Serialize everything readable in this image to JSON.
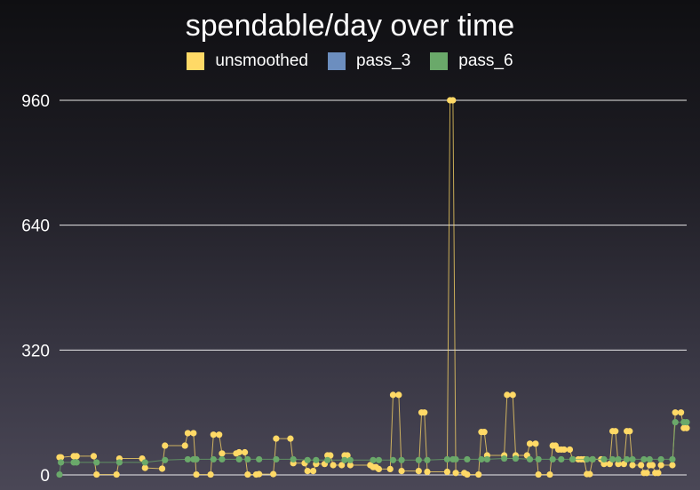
{
  "chart_data": {
    "type": "line",
    "title": "spendable/day over time",
    "xlabel": "",
    "ylabel": "",
    "ylim": [
      0,
      960
    ],
    "yticks": [
      0,
      320,
      640,
      960
    ],
    "grid": true,
    "legend_position": "top-center",
    "series": [
      {
        "name": "unsmoothed",
        "color": "#ffd966",
        "points": [
          [
            0,
            45
          ],
          [
            0.5,
            45
          ],
          [
            5,
            48
          ],
          [
            6,
            48
          ],
          [
            12,
            48
          ],
          [
            13,
            1
          ],
          [
            20,
            1
          ],
          [
            21,
            42
          ],
          [
            29,
            42
          ],
          [
            30,
            18
          ],
          [
            36,
            16
          ],
          [
            37,
            75
          ],
          [
            44,
            75
          ],
          [
            45,
            107
          ],
          [
            47,
            107
          ],
          [
            48,
            1
          ],
          [
            53,
            1
          ],
          [
            54,
            103
          ],
          [
            56,
            103
          ],
          [
            57,
            55
          ],
          [
            62,
            55
          ],
          [
            63,
            58
          ],
          [
            65,
            58
          ],
          [
            66,
            1
          ],
          [
            69,
            1
          ],
          [
            70,
            2
          ],
          [
            75,
            2
          ],
          [
            76,
            93
          ],
          [
            81,
            93
          ],
          [
            82,
            30
          ],
          [
            86,
            30
          ],
          [
            87,
            10
          ],
          [
            89,
            10
          ],
          [
            90,
            28
          ],
          [
            93,
            28
          ],
          [
            94,
            50
          ],
          [
            95,
            50
          ],
          [
            96,
            25
          ],
          [
            99,
            25
          ],
          [
            100,
            50
          ],
          [
            101,
            50
          ],
          [
            102,
            25
          ],
          [
            109,
            25
          ],
          [
            110,
            20
          ],
          [
            111,
            20
          ],
          [
            112,
            15
          ],
          [
            116,
            15
          ],
          [
            117,
            205
          ],
          [
            119,
            205
          ],
          [
            120,
            10
          ],
          [
            126,
            10
          ],
          [
            127,
            160
          ],
          [
            128,
            160
          ],
          [
            129,
            8
          ],
          [
            136,
            8
          ],
          [
            137,
            960
          ],
          [
            138,
            960
          ],
          [
            139,
            5
          ],
          [
            142,
            5
          ],
          [
            143,
            1
          ],
          [
            147,
            1
          ],
          [
            148,
            110
          ],
          [
            149,
            110
          ],
          [
            150,
            50
          ],
          [
            156,
            50
          ],
          [
            157,
            205
          ],
          [
            159,
            205
          ],
          [
            160,
            50
          ],
          [
            164,
            50
          ],
          [
            165,
            80
          ],
          [
            167,
            80
          ],
          [
            168,
            1
          ],
          [
            172,
            1
          ],
          [
            173,
            75
          ],
          [
            174,
            75
          ],
          [
            175,
            65
          ],
          [
            176,
            65
          ],
          [
            177,
            65
          ],
          [
            179,
            65
          ],
          [
            180,
            40
          ],
          [
            182,
            40
          ],
          [
            183,
            40
          ],
          [
            184,
            40
          ],
          [
            185,
            2
          ],
          [
            186,
            2
          ],
          [
            187,
            40
          ],
          [
            190,
            40
          ],
          [
            191,
            28
          ],
          [
            193,
            28
          ],
          [
            194,
            112
          ],
          [
            195,
            112
          ],
          [
            196,
            28
          ],
          [
            198,
            28
          ],
          [
            199,
            112
          ],
          [
            200,
            112
          ],
          [
            201,
            25
          ],
          [
            204,
            25
          ],
          [
            205,
            5
          ],
          [
            206,
            5
          ],
          [
            207,
            25
          ],
          [
            208,
            25
          ],
          [
            209,
            5
          ],
          [
            210,
            5
          ],
          [
            211,
            25
          ],
          [
            215,
            25
          ],
          [
            216,
            160
          ],
          [
            218,
            160
          ],
          [
            219,
            120
          ],
          [
            220,
            120
          ]
        ]
      },
      {
        "name": "pass_3",
        "color": "#6c8ebf",
        "points": []
      },
      {
        "name": "pass_6",
        "color": "#6aa96a",
        "points": [
          [
            0,
            1
          ],
          [
            0.5,
            32
          ],
          [
            5,
            32
          ],
          [
            6,
            32
          ],
          [
            13,
            32
          ],
          [
            21,
            32
          ],
          [
            30,
            32
          ],
          [
            37,
            38
          ],
          [
            45,
            40
          ],
          [
            47,
            40
          ],
          [
            48,
            40
          ],
          [
            54,
            40
          ],
          [
            57,
            40
          ],
          [
            63,
            40
          ],
          [
            66,
            40
          ],
          [
            70,
            40
          ],
          [
            76,
            40
          ],
          [
            82,
            40
          ],
          [
            87,
            38
          ],
          [
            90,
            38
          ],
          [
            94,
            38
          ],
          [
            100,
            38
          ],
          [
            102,
            38
          ],
          [
            110,
            38
          ],
          [
            112,
            38
          ],
          [
            117,
            38
          ],
          [
            120,
            38
          ],
          [
            126,
            38
          ],
          [
            129,
            38
          ],
          [
            136,
            40
          ],
          [
            138,
            40
          ],
          [
            139,
            40
          ],
          [
            143,
            40
          ],
          [
            148,
            40
          ],
          [
            150,
            40
          ],
          [
            156,
            42
          ],
          [
            160,
            42
          ],
          [
            165,
            40
          ],
          [
            168,
            40
          ],
          [
            173,
            40
          ],
          [
            176,
            40
          ],
          [
            180,
            40
          ],
          [
            185,
            40
          ],
          [
            187,
            40
          ],
          [
            191,
            40
          ],
          [
            194,
            40
          ],
          [
            196,
            40
          ],
          [
            199,
            40
          ],
          [
            201,
            40
          ],
          [
            205,
            40
          ],
          [
            207,
            40
          ],
          [
            211,
            40
          ],
          [
            215,
            40
          ],
          [
            216,
            135
          ],
          [
            219,
            135
          ],
          [
            220,
            135
          ]
        ]
      }
    ]
  }
}
